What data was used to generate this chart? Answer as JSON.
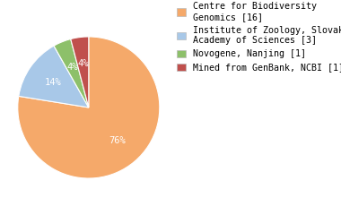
{
  "labels": [
    "Centre for Biodiversity\nGenomics [16]",
    "Institute of Zoology, Slovak\nAcademy of Sciences [3]",
    "Novogene, Nanjing [1]",
    "Mined from GenBank, NCBI [1]"
  ],
  "values": [
    76,
    14,
    4,
    4
  ],
  "colors": [
    "#F5A96A",
    "#A8C8E8",
    "#8DC06A",
    "#C0504D"
  ],
  "pct_labels": [
    "76%",
    "14%",
    "4%",
    "4%"
  ],
  "background_color": "#ffffff",
  "text_color": "#ffffff",
  "legend_fontsize": 7.2,
  "pct_fontsize": 7.5
}
